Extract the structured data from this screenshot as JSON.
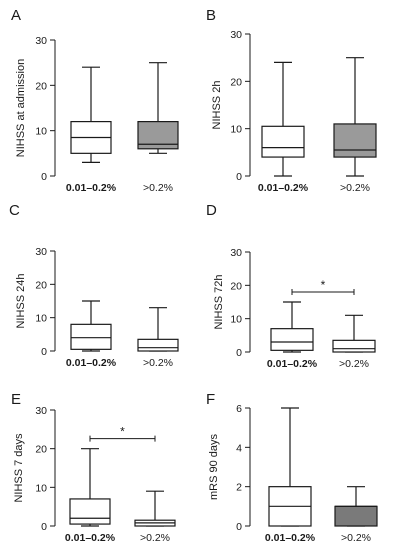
{
  "chart_data": [
    {
      "panel": "A",
      "type": "boxplot",
      "ylabel": "NIHSS at admission",
      "ylim": [
        0,
        30
      ],
      "yticks": [
        0,
        10,
        20,
        30
      ],
      "categories": [
        "0.01–0.2%",
        ">0.2%"
      ],
      "boxes": [
        {
          "category": "0.01–0.2%",
          "min": 3,
          "q1": 5,
          "median": 8.5,
          "q3": 12,
          "max": 24,
          "fill": "#ffffff"
        },
        {
          "category": ">0.2%",
          "min": 5,
          "q1": 6,
          "median": 7,
          "q3": 12,
          "max": 25,
          "fill": "#9a9a9a"
        }
      ],
      "significance": null
    },
    {
      "panel": "B",
      "type": "boxplot",
      "ylabel": "NIHSS 2h",
      "ylim": [
        0,
        30
      ],
      "yticks": [
        0,
        10,
        20,
        30
      ],
      "categories": [
        "0.01–0.2%",
        ">0.2%"
      ],
      "boxes": [
        {
          "category": "0.01–0.2%",
          "min": 0,
          "q1": 4,
          "median": 6,
          "q3": 10.5,
          "max": 24,
          "fill": "#ffffff"
        },
        {
          "category": ">0.2%",
          "min": 0,
          "q1": 4,
          "median": 5.5,
          "q3": 11,
          "max": 25,
          "fill": "#9a9a9a"
        }
      ],
      "significance": null
    },
    {
      "panel": "C",
      "type": "boxplot",
      "ylabel": "NIHSS 24h",
      "ylim": [
        0,
        30
      ],
      "yticks": [
        0,
        10,
        20,
        30
      ],
      "categories": [
        "0.01–0.2%",
        ">0.2%"
      ],
      "boxes": [
        {
          "category": "0.01–0.2%",
          "min": 0,
          "q1": 0.5,
          "median": 4,
          "q3": 8,
          "max": 15,
          "fill": "#ffffff"
        },
        {
          "category": ">0.2%",
          "min": 0,
          "q1": 0,
          "median": 1,
          "q3": 3.5,
          "max": 13,
          "fill": "#ffffff"
        }
      ],
      "significance": null
    },
    {
      "panel": "D",
      "type": "boxplot",
      "ylabel": "NIHSS 72h",
      "ylim": [
        0,
        30
      ],
      "yticks": [
        0,
        10,
        20,
        30
      ],
      "categories": [
        "0.01–0.2%",
        ">0.2%"
      ],
      "boxes": [
        {
          "category": "0.01–0.2%",
          "min": 0,
          "q1": 0.5,
          "median": 3,
          "q3": 7,
          "max": 15,
          "fill": "#ffffff"
        },
        {
          "category": ">0.2%",
          "min": 0,
          "q1": 0,
          "median": 1,
          "q3": 3.5,
          "max": 11,
          "fill": "#ffffff"
        }
      ],
      "significance": "*"
    },
    {
      "panel": "E",
      "type": "boxplot",
      "ylabel": "NIHSS 7 days",
      "ylim": [
        0,
        30
      ],
      "yticks": [
        0,
        10,
        20,
        30
      ],
      "categories": [
        "0.01–0.2%",
        ">0.2%"
      ],
      "boxes": [
        {
          "category": "0.01–0.2%",
          "min": 0,
          "q1": 0.5,
          "median": 2,
          "q3": 7,
          "max": 20,
          "fill": "#ffffff"
        },
        {
          "category": ">0.2%",
          "min": 0,
          "q1": 0,
          "median": 0.8,
          "q3": 1.5,
          "max": 9,
          "fill": "#ffffff"
        }
      ],
      "significance": "*"
    },
    {
      "panel": "F",
      "type": "boxplot",
      "ylabel": "mRS 90 days",
      "ylim": [
        0,
        6
      ],
      "yticks": [
        0,
        2,
        4,
        6
      ],
      "categories": [
        "0.01–0.2%",
        ">0.2%"
      ],
      "boxes": [
        {
          "category": "0.01–0.2%",
          "min": 0,
          "q1": 0,
          "median": 1,
          "q3": 2,
          "max": 6,
          "fill": "#ffffff"
        },
        {
          "category": ">0.2%",
          "min": 0,
          "q1": 0,
          "median": 1,
          "q3": 1,
          "max": 2,
          "fill": "#7a7a7a"
        }
      ],
      "significance": null
    }
  ]
}
